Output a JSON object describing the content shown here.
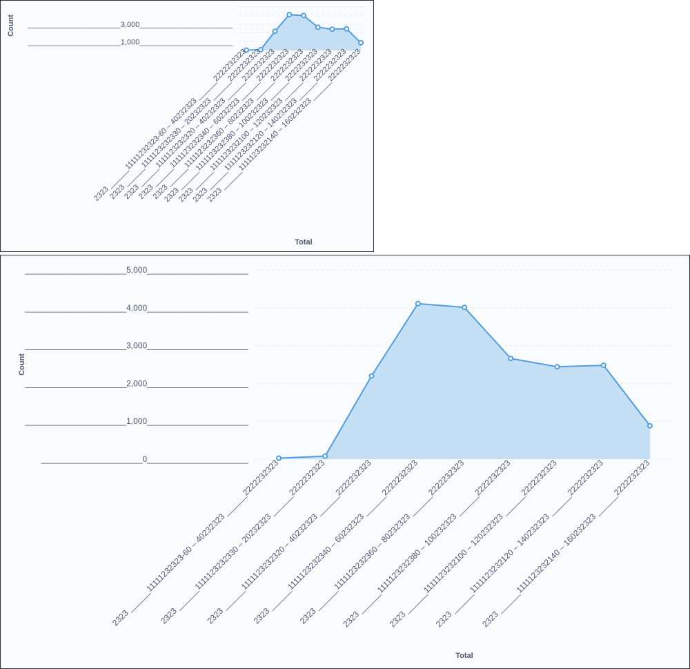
{
  "chart_data": [
    {
      "type": "area",
      "xlabel": "Total",
      "ylabel": "Count",
      "y_ticks": [
        "______________________1,000______________________",
        "______________________3,000______________________"
      ],
      "y_tick_values": [
        1000,
        3000
      ],
      "ylim": [
        0,
        5000
      ],
      "categories": [
        "2323 ______11111232323-60 – 40232323 ______2222232323",
        "2323 ______1111123232330 – 20232323 ______2222232323",
        "2323 ______1111123232320 – 40232323 ______2222232323",
        "2323 ______1111123232340 – 60232323 ______2222232323",
        "2323 ______1111123232360 – 80232323 ______2222232323",
        "2323 ______1111123232380 – 100232323 ______2222232323",
        "2323 ______1111123232100 – 120232323 ______2222232323",
        "2323 ______1111123232120 – 140232323 ______2222232323",
        "2323 ______1111123232140 – 160232323 ______2222232323"
      ],
      "values": [
        25,
        80,
        2200,
        4110,
        4010,
        2660,
        2440,
        2480,
        880
      ]
    },
    {
      "type": "area",
      "xlabel": "Total",
      "ylabel": "Count",
      "y_ticks": [
        "______________________0______________________",
        "______________________1,000______________________",
        "______________________2,000______________________",
        "______________________3,000______________________",
        "______________________4,000______________________",
        "______________________5,000______________________"
      ],
      "y_tick_values": [
        0,
        1000,
        2000,
        3000,
        4000,
        5000
      ],
      "ylim": [
        0,
        5000
      ],
      "categories": [
        "2323 ______11111232323-60 – 40232323 ______2222232323",
        "2323 ______1111123232330 – 20232323 ______2222232323",
        "2323 ______1111123232320 – 40232323 ______2222232323",
        "2323 ______1111123232340 – 60232323 ______2222232323",
        "2323 ______1111123232360 – 80232323 ______2222232323",
        "2323 ______1111123232380 – 100232323 ______2222232323",
        "2323 ______1111123232100 – 120232323 ______2222232323",
        "2323 ______1111123232120 – 140232323 ______2222232323",
        "2323 ______1111123232140 – 160232323 ______2222232323"
      ],
      "values": [
        25,
        80,
        2200,
        4110,
        4010,
        2660,
        2440,
        2480,
        880
      ]
    }
  ]
}
